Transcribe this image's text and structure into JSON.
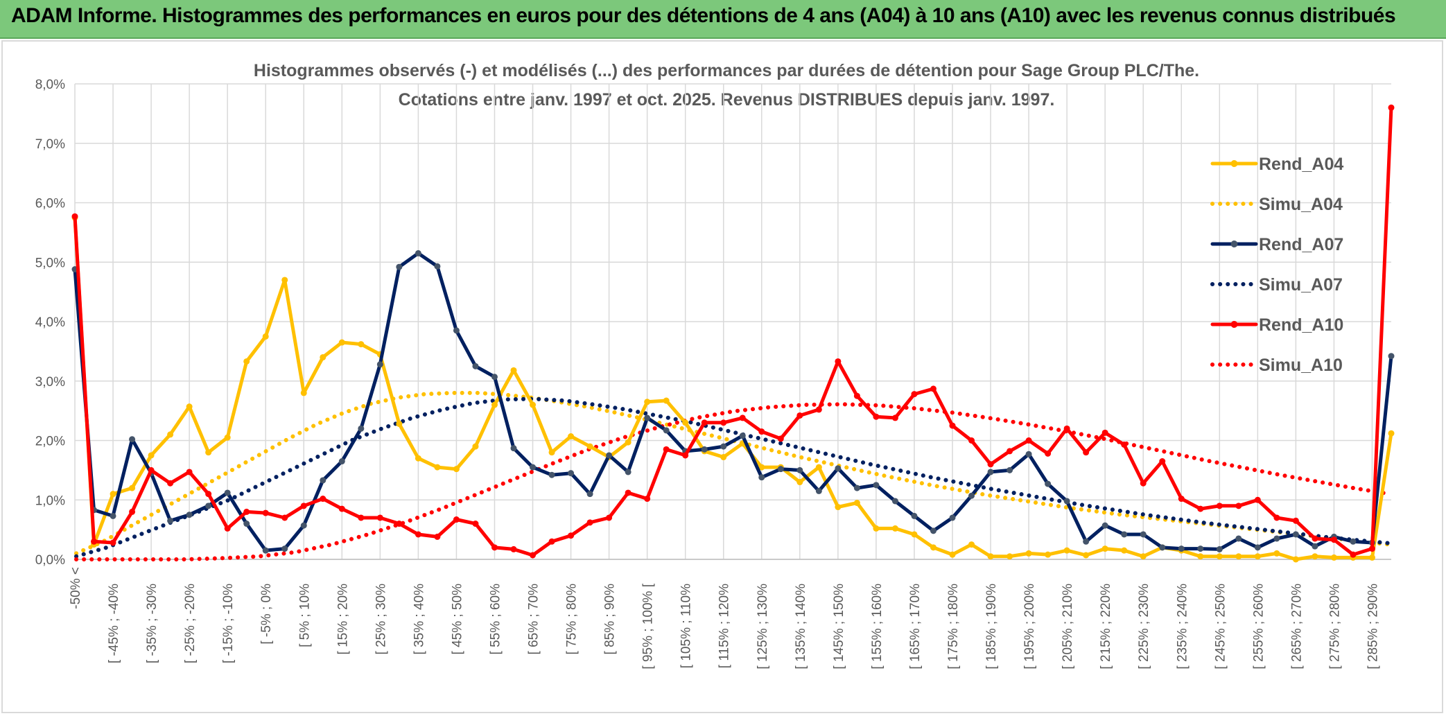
{
  "header": {
    "title": "ADAM Informe. Histogrammes des performances en euros pour des détentions de 4 ans (A04) à 10 ans (A10) avec les revenus connus distribués"
  },
  "chart_data": {
    "type": "line",
    "title": "Histogrammes observés (-) et modélisés (...) des performances par durées de détention pour Sage Group PLC/The.",
    "subtitle": "Cotations entre janv. 1997 et oct. 2025. Revenus DISTRIBUES depuis janv. 1997.",
    "xlabel": "",
    "ylabel": "",
    "ylim": [
      0,
      8
    ],
    "yticks": [
      "0,0%",
      "1,0%",
      "2,0%",
      "3,0%",
      "4,0%",
      "5,0%",
      "6,0%",
      "7,0%",
      "8,0%"
    ],
    "grid": true,
    "legend_position": "right",
    "x_labels": [
      "-50% <",
      "[ -45% ; -40%",
      "[ -35% ; -30%",
      "[ -25% ; -20%",
      "[ -15% ; -10%",
      "[ -5% ; 0%",
      "[ 5% ; 10%",
      "[ 15% ; 20%",
      "[ 25% ; 30%",
      "[ 35% ; 40%",
      "[ 45% ; 50%",
      "[ 55% ; 60%",
      "[ 65% ; 70%",
      "[ 75% ; 80%",
      "[ 85% ; 90%",
      "[ 95% ; 100% [",
      "[ 105% ; 110%",
      "[ 115% ; 120%",
      "[ 125% ; 130%",
      "[ 135% ; 140%",
      "[ 145% ; 150%",
      "[ 155% ; 160%",
      "[ 165% ; 170%",
      "[ 175% ; 180%",
      "[ 185% ; 190%",
      "[ 195% ; 200%",
      "[ 205% ; 210%",
      "[ 215% ; 220%",
      "[ 225% ; 230%",
      "[ 235% ; 240%",
      "[ 245% ; 250%",
      "[ 255% ; 260%",
      "[ 265% ; 270%",
      "[ 275% ; 280%",
      "[ 285% ; 290%"
    ],
    "series": [
      {
        "name": "Rend_A04",
        "style": "solid",
        "color": "#ffc000",
        "values": [
          5.75,
          0.25,
          1.1,
          1.2,
          1.75,
          2.1,
          2.57,
          1.8,
          2.05,
          3.33,
          3.75,
          4.7,
          2.8,
          3.4,
          3.65,
          3.62,
          3.45,
          2.28,
          1.7,
          1.55,
          1.52,
          1.9,
          2.6,
          3.18,
          2.6,
          1.8,
          2.07,
          1.9,
          1.72,
          1.97,
          2.65,
          2.67,
          2.3,
          1.82,
          1.72,
          1.95,
          1.55,
          1.55,
          1.3,
          1.55,
          0.88,
          0.95,
          0.52,
          0.52,
          0.42,
          0.2,
          0.08,
          0.25,
          0.05,
          0.05,
          0.1,
          0.08,
          0.15,
          0.07,
          0.18,
          0.15,
          0.05,
          0.2,
          0.15,
          0.05,
          0.05,
          0.05,
          0.05,
          0.1,
          0.0,
          0.05,
          0.03,
          0.03,
          0.03,
          2.12
        ]
      },
      {
        "name": "Simu_A04",
        "style": "dotted",
        "color": "#ffc000",
        "values": [
          0.1,
          0.3,
          0.55,
          0.8,
          1.05,
          1.3,
          1.55,
          1.8,
          2.05,
          2.28,
          2.47,
          2.62,
          2.72,
          2.78,
          2.8,
          2.8,
          2.77,
          2.72,
          2.65,
          2.57,
          2.48,
          2.38,
          2.27,
          2.16,
          2.05,
          1.94,
          1.83,
          1.72,
          1.62,
          1.52,
          1.42,
          1.33,
          1.24,
          1.16,
          1.08,
          1.01,
          0.94,
          0.87,
          0.81,
          0.75,
          0.7,
          0.65,
          0.6,
          0.55,
          0.5,
          0.45,
          0.4,
          0.35,
          0.3,
          0.25
        ]
      },
      {
        "name": "Rend_A07",
        "style": "solid",
        "color": "#002060",
        "values": [
          4.88,
          0.83,
          0.73,
          2.02,
          1.45,
          0.65,
          0.75,
          0.9,
          1.12,
          0.6,
          0.15,
          0.18,
          0.57,
          1.33,
          1.65,
          2.2,
          3.28,
          4.92,
          5.15,
          4.93,
          3.85,
          3.25,
          3.07,
          1.87,
          1.55,
          1.42,
          1.45,
          1.1,
          1.75,
          1.47,
          2.38,
          2.17,
          1.82,
          1.85,
          1.9,
          2.08,
          1.38,
          1.52,
          1.5,
          1.15,
          1.53,
          1.2,
          1.25,
          0.98,
          0.73,
          0.48,
          0.7,
          1.07,
          1.47,
          1.5,
          1.77,
          1.27,
          0.98,
          0.3,
          0.57,
          0.42,
          0.42,
          0.2,
          0.18,
          0.18,
          0.17,
          0.35,
          0.2,
          0.35,
          0.42,
          0.22,
          0.38,
          0.3,
          0.28,
          3.42
        ]
      },
      {
        "name": "Simu_A07",
        "style": "dotted",
        "color": "#002060",
        "values": [
          0.05,
          0.2,
          0.4,
          0.6,
          0.8,
          1.0,
          1.25,
          1.5,
          1.75,
          2.0,
          2.2,
          2.38,
          2.52,
          2.63,
          2.69,
          2.7,
          2.67,
          2.6,
          2.52,
          2.42,
          2.32,
          2.2,
          2.08,
          1.96,
          1.84,
          1.72,
          1.6,
          1.49,
          1.38,
          1.28,
          1.18,
          1.09,
          1.0,
          0.91,
          0.83,
          0.75,
          0.68,
          0.61,
          0.55,
          0.49,
          0.43,
          0.37,
          0.32,
          0.27
        ]
      },
      {
        "name": "Rend_A10",
        "style": "solid",
        "color": "#ff0000",
        "values": [
          5.77,
          0.3,
          0.28,
          0.8,
          1.5,
          1.28,
          1.47,
          1.1,
          0.52,
          0.8,
          0.78,
          0.7,
          0.9,
          1.02,
          0.85,
          0.7,
          0.7,
          0.6,
          0.42,
          0.38,
          0.67,
          0.6,
          0.2,
          0.17,
          0.07,
          0.3,
          0.4,
          0.62,
          0.7,
          1.12,
          1.02,
          1.85,
          1.75,
          2.3,
          2.3,
          2.38,
          2.15,
          2.03,
          2.42,
          2.52,
          3.33,
          2.75,
          2.4,
          2.38,
          2.78,
          2.87,
          2.25,
          2.0,
          1.6,
          1.82,
          2.0,
          1.78,
          2.2,
          1.8,
          2.13,
          1.93,
          1.28,
          1.65,
          1.02,
          0.85,
          0.9,
          0.9,
          1.0,
          0.7,
          0.65,
          0.35,
          0.33,
          0.08,
          0.18,
          7.6
        ]
      },
      {
        "name": "Simu_A10",
        "style": "dotted",
        "color": "#ff0000",
        "values": [
          0.0,
          0.0,
          0.0,
          0.0,
          0.02,
          0.05,
          0.12,
          0.25,
          0.42,
          0.62,
          0.85,
          1.1,
          1.35,
          1.6,
          1.84,
          2.05,
          2.23,
          2.38,
          2.49,
          2.56,
          2.6,
          2.61,
          2.59,
          2.54,
          2.47,
          2.38,
          2.28,
          2.17,
          2.05,
          1.92,
          1.79,
          1.66,
          1.54,
          1.42,
          1.31,
          1.2,
          1.1
        ]
      }
    ]
  }
}
